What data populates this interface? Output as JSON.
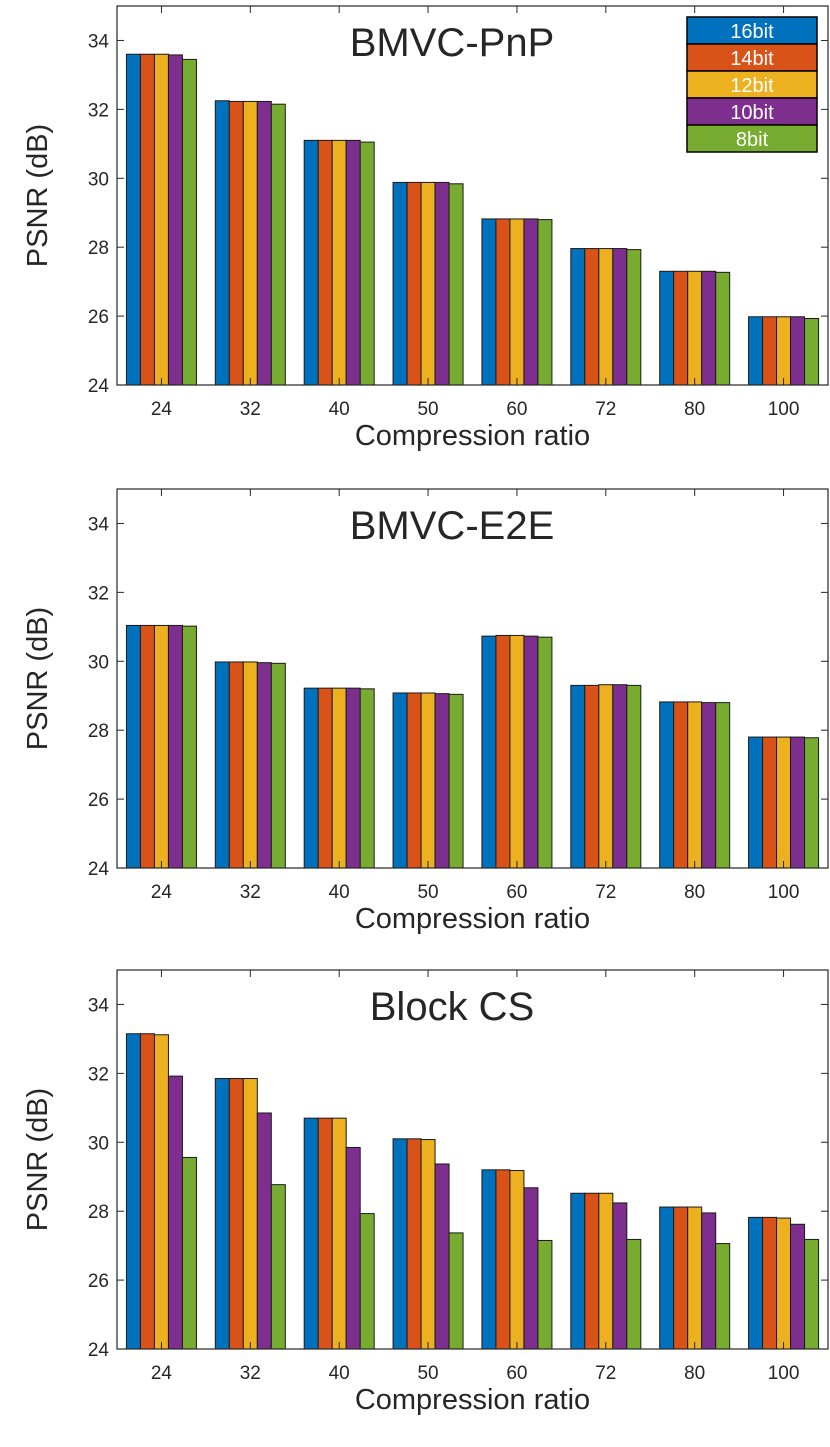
{
  "legend": {
    "entries": [
      "16bit",
      "14bit",
      "12bit",
      "10bit",
      "8bit"
    ],
    "colors": [
      "#0072BD",
      "#D95319",
      "#EDB120",
      "#7E2F8E",
      "#77AC30"
    ]
  },
  "chart_data": [
    {
      "type": "bar",
      "title": "BMVC-PnP",
      "xlabel": "Compression ratio",
      "ylabel": "PSNR (dB)",
      "ylim": [
        24,
        35
      ],
      "yticks": [
        "24",
        "26",
        "28",
        "30",
        "32",
        "34"
      ],
      "legend_position": "top-right",
      "categories": [
        "24",
        "32",
        "40",
        "50",
        "60",
        "72",
        "80",
        "100"
      ],
      "series": [
        {
          "name": "16bit",
          "values": [
            33.6,
            32.25,
            31.1,
            29.88,
            28.82,
            27.96,
            27.3,
            25.98
          ]
        },
        {
          "name": "14bit",
          "values": [
            33.6,
            32.23,
            31.1,
            29.88,
            28.82,
            27.96,
            27.3,
            25.98
          ]
        },
        {
          "name": "12bit",
          "values": [
            33.6,
            32.23,
            31.1,
            29.88,
            28.82,
            27.96,
            27.3,
            25.98
          ]
        },
        {
          "name": "10bit",
          "values": [
            33.58,
            32.23,
            31.1,
            29.88,
            28.82,
            27.96,
            27.3,
            25.98
          ]
        },
        {
          "name": "8bit",
          "values": [
            33.45,
            32.15,
            31.05,
            29.84,
            28.8,
            27.93,
            27.27,
            25.93
          ]
        }
      ]
    },
    {
      "type": "bar",
      "title": "BMVC-E2E",
      "xlabel": "Compression ratio",
      "ylabel": "PSNR (dB)",
      "ylim": [
        24,
        35
      ],
      "yticks": [
        "24",
        "26",
        "28",
        "30",
        "32",
        "34"
      ],
      "categories": [
        "24",
        "32",
        "40",
        "50",
        "60",
        "72",
        "80",
        "100"
      ],
      "series": [
        {
          "name": "16bit",
          "values": [
            31.04,
            29.98,
            29.22,
            29.08,
            30.73,
            29.3,
            28.82,
            27.8
          ]
        },
        {
          "name": "14bit",
          "values": [
            31.04,
            29.98,
            29.22,
            29.08,
            30.75,
            29.3,
            28.82,
            27.8
          ]
        },
        {
          "name": "12bit",
          "values": [
            31.04,
            29.98,
            29.22,
            29.08,
            30.75,
            29.32,
            28.82,
            27.8
          ]
        },
        {
          "name": "10bit",
          "values": [
            31.04,
            29.96,
            29.22,
            29.06,
            30.73,
            29.32,
            28.8,
            27.8
          ]
        },
        {
          "name": "8bit",
          "values": [
            31.02,
            29.94,
            29.2,
            29.04,
            30.7,
            29.3,
            28.8,
            27.78
          ]
        }
      ]
    },
    {
      "type": "bar",
      "title": "Block CS",
      "xlabel": "Compression ratio",
      "ylabel": "PSNR (dB)",
      "ylim": [
        24,
        35
      ],
      "yticks": [
        "24",
        "26",
        "28",
        "30",
        "32",
        "34"
      ],
      "categories": [
        "24",
        "32",
        "40",
        "50",
        "60",
        "72",
        "80",
        "100"
      ],
      "series": [
        {
          "name": "16bit",
          "values": [
            33.15,
            31.85,
            30.7,
            30.1,
            29.2,
            28.52,
            28.12,
            27.82
          ]
        },
        {
          "name": "14bit",
          "values": [
            33.15,
            31.85,
            30.7,
            30.1,
            29.2,
            28.52,
            28.12,
            27.82
          ]
        },
        {
          "name": "12bit",
          "values": [
            33.12,
            31.85,
            30.7,
            30.08,
            29.18,
            28.52,
            28.12,
            27.8
          ]
        },
        {
          "name": "10bit",
          "values": [
            31.92,
            30.85,
            29.85,
            29.37,
            28.68,
            28.24,
            27.95,
            27.62
          ]
        },
        {
          "name": "8bit",
          "values": [
            29.56,
            28.77,
            27.93,
            27.37,
            27.15,
            27.18,
            27.06,
            27.18
          ]
        }
      ]
    }
  ]
}
